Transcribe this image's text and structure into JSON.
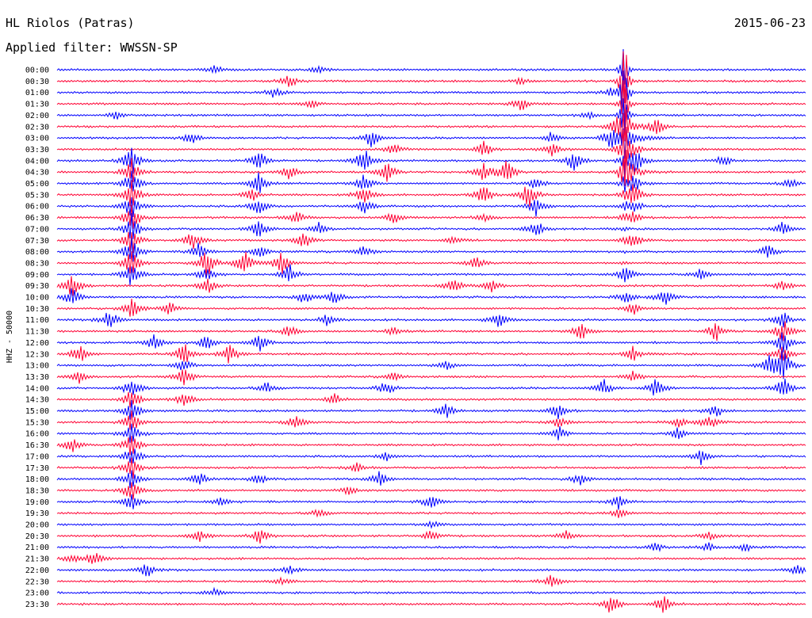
{
  "header": {
    "station": "HL Riolos (Patras)",
    "date": "2015-06-23",
    "filter": "Applied filter: WWSSN-SP"
  },
  "chart_data": {
    "type": "line",
    "title": "HL Riolos (Patras)",
    "ylabel": "HHZ - 50000",
    "xlabel": "",
    "series_colors": [
      "#0000ff",
      "#ff0033"
    ],
    "rows": [
      {
        "label": "00:00",
        "color": "#0000ff",
        "events": [
          [
            0.21,
            6
          ],
          [
            0.35,
            5
          ]
        ]
      },
      {
        "label": "00:30",
        "color": "#ff0033",
        "events": [
          [
            0.31,
            10
          ],
          [
            0.62,
            5
          ]
        ]
      },
      {
        "label": "01:00",
        "color": "#0000ff",
        "events": [
          [
            0.29,
            7
          ],
          [
            0.74,
            5
          ]
        ]
      },
      {
        "label": "01:30",
        "color": "#ff0033",
        "events": [
          [
            0.34,
            6
          ],
          [
            0.62,
            9
          ]
        ]
      },
      {
        "label": "02:00",
        "color": "#0000ff",
        "events": [
          [
            0.08,
            6
          ],
          [
            0.71,
            5
          ]
        ]
      },
      {
        "label": "02:30",
        "color": "#ff0033",
        "events": [
          [
            0.75,
            20
          ],
          [
            0.8,
            12
          ]
        ]
      },
      {
        "label": "03:00",
        "color": "#0000ff",
        "events": [
          [
            0.18,
            8
          ],
          [
            0.42,
            14
          ],
          [
            0.66,
            8
          ],
          [
            0.74,
            16
          ]
        ]
      },
      {
        "label": "03:30",
        "color": "#ff0033",
        "events": [
          [
            0.45,
            8
          ],
          [
            0.57,
            12
          ],
          [
            0.66,
            10
          ],
          [
            0.76,
            20
          ]
        ]
      },
      {
        "label": "04:00",
        "color": "#0000ff",
        "events": [
          [
            0.1,
            20
          ],
          [
            0.27,
            16
          ],
          [
            0.41,
            18
          ],
          [
            0.69,
            14
          ],
          [
            0.77,
            22
          ],
          [
            0.89,
            8
          ]
        ]
      },
      {
        "label": "04:30",
        "color": "#ff0033",
        "events": [
          [
            0.1,
            18
          ],
          [
            0.31,
            10
          ],
          [
            0.44,
            14
          ],
          [
            0.57,
            12
          ],
          [
            0.6,
            18
          ],
          [
            0.76,
            20
          ]
        ]
      },
      {
        "label": "05:00",
        "color": "#0000ff",
        "events": [
          [
            0.1,
            20
          ],
          [
            0.27,
            16
          ],
          [
            0.41,
            12
          ],
          [
            0.64,
            10
          ],
          [
            0.77,
            14
          ],
          [
            0.98,
            6
          ]
        ]
      },
      {
        "label": "05:30",
        "color": "#ff0033",
        "events": [
          [
            0.1,
            20
          ],
          [
            0.26,
            10
          ],
          [
            0.41,
            14
          ],
          [
            0.57,
            14
          ],
          [
            0.63,
            18
          ],
          [
            0.77,
            16
          ]
        ]
      },
      {
        "label": "06:00",
        "color": "#0000ff",
        "events": [
          [
            0.1,
            20
          ],
          [
            0.27,
            12
          ],
          [
            0.41,
            10
          ],
          [
            0.64,
            14
          ],
          [
            0.77,
            10
          ]
        ]
      },
      {
        "label": "06:30",
        "color": "#ff0033",
        "events": [
          [
            0.1,
            20
          ],
          [
            0.32,
            10
          ],
          [
            0.45,
            8
          ],
          [
            0.57,
            6
          ],
          [
            0.77,
            10
          ]
        ]
      },
      {
        "label": "07:00",
        "color": "#0000ff",
        "events": [
          [
            0.1,
            20
          ],
          [
            0.27,
            12
          ],
          [
            0.35,
            8
          ],
          [
            0.64,
            12
          ],
          [
            0.97,
            10
          ]
        ]
      },
      {
        "label": "07:30",
        "color": "#ff0033",
        "events": [
          [
            0.1,
            20
          ],
          [
            0.18,
            14
          ],
          [
            0.33,
            12
          ],
          [
            0.53,
            6
          ],
          [
            0.77,
            10
          ]
        ]
      },
      {
        "label": "08:00",
        "color": "#0000ff",
        "events": [
          [
            0.1,
            20
          ],
          [
            0.19,
            12
          ],
          [
            0.27,
            10
          ],
          [
            0.41,
            8
          ],
          [
            0.95,
            10
          ]
        ]
      },
      {
        "label": "08:30",
        "color": "#ff0033",
        "events": [
          [
            0.1,
            20
          ],
          [
            0.2,
            22
          ],
          [
            0.25,
            20
          ],
          [
            0.3,
            16
          ],
          [
            0.56,
            8
          ]
        ]
      },
      {
        "label": "09:00",
        "color": "#0000ff",
        "events": [
          [
            0.1,
            20
          ],
          [
            0.2,
            12
          ],
          [
            0.31,
            14
          ],
          [
            0.76,
            12
          ],
          [
            0.86,
            8
          ]
        ]
      },
      {
        "label": "09:30",
        "color": "#ff0033",
        "events": [
          [
            0.02,
            18
          ],
          [
            0.2,
            12
          ],
          [
            0.53,
            10
          ],
          [
            0.58,
            8
          ],
          [
            0.97,
            8
          ]
        ]
      },
      {
        "label": "10:00",
        "color": "#0000ff",
        "events": [
          [
            0.02,
            14
          ],
          [
            0.33,
            8
          ],
          [
            0.37,
            10
          ],
          [
            0.76,
            10
          ],
          [
            0.81,
            14
          ]
        ]
      },
      {
        "label": "10:30",
        "color": "#ff0033",
        "events": [
          [
            0.1,
            14
          ],
          [
            0.15,
            10
          ],
          [
            0.77,
            8
          ]
        ]
      },
      {
        "label": "11:00",
        "color": "#0000ff",
        "events": [
          [
            0.07,
            16
          ],
          [
            0.36,
            8
          ],
          [
            0.59,
            12
          ],
          [
            0.97,
            12
          ]
        ]
      },
      {
        "label": "11:30",
        "color": "#ff0033",
        "events": [
          [
            0.31,
            8
          ],
          [
            0.45,
            6
          ],
          [
            0.7,
            14
          ],
          [
            0.88,
            14
          ],
          [
            0.97,
            16
          ]
        ]
      },
      {
        "label": "12:00",
        "color": "#0000ff",
        "events": [
          [
            0.13,
            12
          ],
          [
            0.2,
            10
          ],
          [
            0.27,
            12
          ],
          [
            0.97,
            18
          ]
        ]
      },
      {
        "label": "12:30",
        "color": "#ff0033",
        "events": [
          [
            0.03,
            14
          ],
          [
            0.17,
            16
          ],
          [
            0.23,
            14
          ],
          [
            0.77,
            10
          ],
          [
            0.97,
            14
          ]
        ]
      },
      {
        "label": "13:00",
        "color": "#0000ff",
        "events": [
          [
            0.17,
            10
          ],
          [
            0.52,
            6
          ],
          [
            0.95,
            14
          ],
          [
            0.97,
            22
          ]
        ]
      },
      {
        "label": "13:30",
        "color": "#ff0033",
        "events": [
          [
            0.03,
            10
          ],
          [
            0.17,
            14
          ],
          [
            0.45,
            6
          ],
          [
            0.77,
            8
          ]
        ]
      },
      {
        "label": "14:00",
        "color": "#0000ff",
        "events": [
          [
            0.1,
            16
          ],
          [
            0.28,
            8
          ],
          [
            0.44,
            10
          ],
          [
            0.73,
            12
          ],
          [
            0.8,
            14
          ],
          [
            0.97,
            16
          ]
        ]
      },
      {
        "label": "14:30",
        "color": "#ff0033",
        "events": [
          [
            0.1,
            16
          ],
          [
            0.17,
            12
          ],
          [
            0.37,
            8
          ]
        ]
      },
      {
        "label": "15:00",
        "color": "#0000ff",
        "events": [
          [
            0.1,
            16
          ],
          [
            0.52,
            10
          ],
          [
            0.67,
            12
          ],
          [
            0.88,
            10
          ]
        ]
      },
      {
        "label": "15:30",
        "color": "#ff0033",
        "events": [
          [
            0.1,
            16
          ],
          [
            0.32,
            12
          ],
          [
            0.67,
            8
          ],
          [
            0.83,
            8
          ],
          [
            0.87,
            12
          ]
        ]
      },
      {
        "label": "16:00",
        "color": "#0000ff",
        "events": [
          [
            0.1,
            16
          ],
          [
            0.67,
            10
          ],
          [
            0.83,
            8
          ]
        ]
      },
      {
        "label": "16:30",
        "color": "#ff0033",
        "events": [
          [
            0.02,
            10
          ],
          [
            0.1,
            16
          ]
        ]
      },
      {
        "label": "17:00",
        "color": "#0000ff",
        "events": [
          [
            0.1,
            16
          ],
          [
            0.44,
            6
          ],
          [
            0.86,
            10
          ]
        ]
      },
      {
        "label": "17:30",
        "color": "#ff0033",
        "events": [
          [
            0.1,
            16
          ],
          [
            0.4,
            6
          ]
        ]
      },
      {
        "label": "18:00",
        "color": "#0000ff",
        "events": [
          [
            0.1,
            16
          ],
          [
            0.19,
            10
          ],
          [
            0.27,
            8
          ],
          [
            0.43,
            10
          ],
          [
            0.7,
            10
          ]
        ]
      },
      {
        "label": "18:30",
        "color": "#ff0033",
        "events": [
          [
            0.1,
            16
          ],
          [
            0.39,
            6
          ]
        ]
      },
      {
        "label": "19:00",
        "color": "#0000ff",
        "events": [
          [
            0.1,
            16
          ],
          [
            0.22,
            6
          ],
          [
            0.5,
            10
          ],
          [
            0.75,
            10
          ]
        ]
      },
      {
        "label": "19:30",
        "color": "#ff0033",
        "events": [
          [
            0.35,
            6
          ],
          [
            0.75,
            6
          ]
        ]
      },
      {
        "label": "20:00",
        "color": "#0000ff",
        "events": [
          [
            0.5,
            5
          ]
        ]
      },
      {
        "label": "20:30",
        "color": "#ff0033",
        "events": [
          [
            0.19,
            8
          ],
          [
            0.27,
            10
          ],
          [
            0.5,
            8
          ],
          [
            0.68,
            6
          ],
          [
            0.87,
            6
          ]
        ]
      },
      {
        "label": "21:00",
        "color": "#0000ff",
        "events": [
          [
            0.8,
            6
          ],
          [
            0.87,
            6
          ],
          [
            0.92,
            6
          ]
        ]
      },
      {
        "label": "21:30",
        "color": "#ff0033",
        "events": [
          [
            0.02,
            6
          ],
          [
            0.05,
            10
          ]
        ]
      },
      {
        "label": "22:00",
        "color": "#0000ff",
        "events": [
          [
            0.12,
            10
          ],
          [
            0.31,
            6
          ],
          [
            0.99,
            8
          ]
        ]
      },
      {
        "label": "22:30",
        "color": "#ff0033",
        "events": [
          [
            0.3,
            6
          ],
          [
            0.66,
            10
          ]
        ]
      },
      {
        "label": "23:00",
        "color": "#0000ff",
        "events": [
          [
            0.21,
            5
          ]
        ]
      },
      {
        "label": "23:30",
        "color": "#ff0033",
        "events": [
          [
            0.74,
            14
          ],
          [
            0.81,
            12
          ]
        ]
      }
    ],
    "big_event": {
      "x_fraction": 0.7576,
      "start_row": 0,
      "peak_row": 1,
      "amplitude": 90
    },
    "grid": false,
    "legend": "none"
  }
}
